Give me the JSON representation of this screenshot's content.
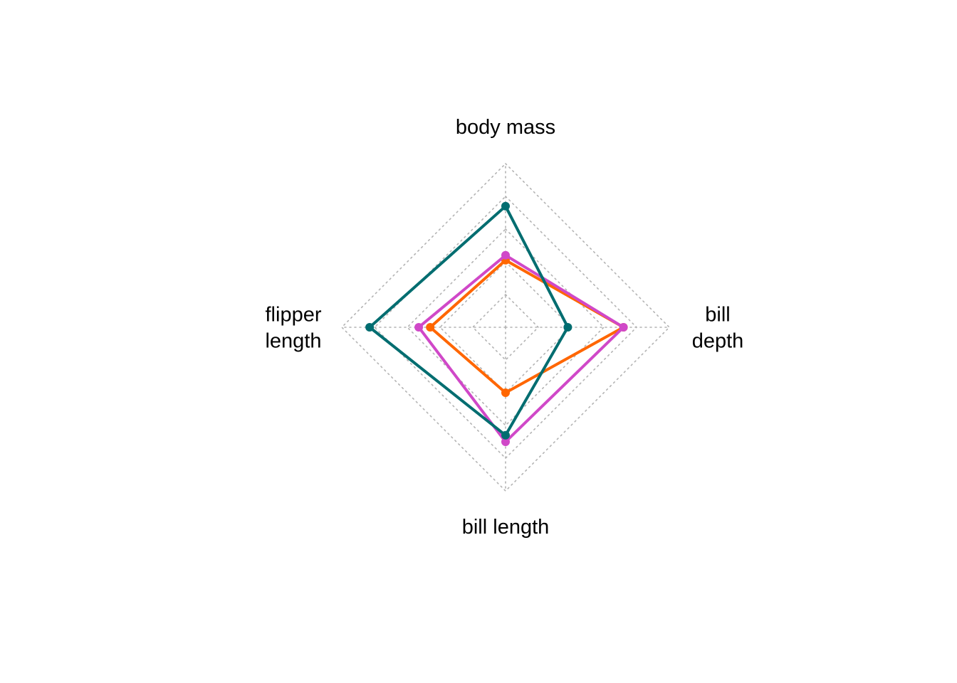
{
  "chart_data": {
    "type": "radar",
    "axes": [
      {
        "key": "body_mass",
        "lines": [
          "body mass"
        ]
      },
      {
        "key": "bill_depth",
        "lines": [
          "bill",
          "depth"
        ]
      },
      {
        "key": "bill_length",
        "lines": [
          "bill length"
        ]
      },
      {
        "key": "flipper_length",
        "lines": [
          "flipper",
          "length"
        ]
      }
    ],
    "range": [
      0,
      1
    ],
    "grid_levels": [
      0.2,
      0.4,
      0.6,
      0.8,
      1.0
    ],
    "grid": true,
    "legend": "none",
    "series": [
      {
        "color": "#ff6600",
        "values": [
          0.41,
          0.72,
          0.4,
          0.46
        ]
      },
      {
        "color": "#d048c8",
        "values": [
          0.44,
          0.72,
          0.7,
          0.53
        ]
      },
      {
        "color": "#006d70",
        "values": [
          0.74,
          0.38,
          0.66,
          0.83
        ]
      }
    ]
  }
}
